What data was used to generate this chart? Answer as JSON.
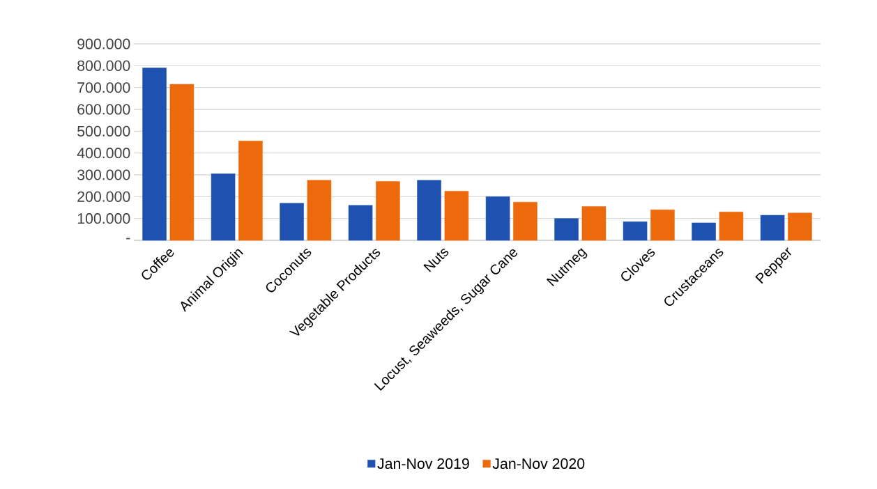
{
  "chart_data": {
    "type": "bar",
    "categories": [
      "Coffee",
      "Animal Origin",
      "Coconuts",
      "Vegetable Products",
      "Nuts",
      "Locust, Seaweeds, Sugar Cane",
      "Nutmeg",
      "Cloves",
      "Crustaceans",
      "Pepper"
    ],
    "series": [
      {
        "name": "Jan-Nov 2019",
        "color": "#1f52b0",
        "values": [
          790,
          305,
          170,
          160,
          275,
          200,
          100,
          85,
          80,
          115
        ]
      },
      {
        "name": "Jan-Nov 2020",
        "color": "#ec6a0c",
        "values": [
          715,
          455,
          275,
          270,
          225,
          175,
          155,
          140,
          130,
          125
        ]
      }
    ],
    "ylim": [
      0,
      900
    ],
    "yticks": [
      {
        "value": 0,
        "label": "-"
      },
      {
        "value": 100,
        "label": "100.000"
      },
      {
        "value": 200,
        "label": "200.000"
      },
      {
        "value": 300,
        "label": "300.000"
      },
      {
        "value": 400,
        "label": "400.000"
      },
      {
        "value": 500,
        "label": "500.000"
      },
      {
        "value": 600,
        "label": "600.000"
      },
      {
        "value": 700,
        "label": "700.000"
      },
      {
        "value": 800,
        "label": "800.000"
      },
      {
        "value": 900,
        "label": "900.000"
      }
    ],
    "grid": "y",
    "legend": "bottom"
  }
}
